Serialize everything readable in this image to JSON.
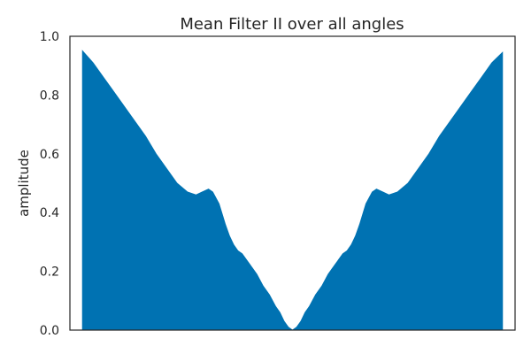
{
  "chart_data": {
    "type": "area",
    "title": "Mean Filter II over all angles",
    "xlabel": "",
    "ylabel": "amplitude",
    "ylim": [
      0,
      1
    ],
    "xlim": [
      -1.06,
      1.06
    ],
    "x_ticks_visible": false,
    "y_ticks": [
      "0.0",
      "0.2",
      "0.4",
      "0.6",
      "0.8",
      "1.0"
    ],
    "grid": false,
    "legend": "none",
    "fill_color": "#0072b2",
    "series": [
      {
        "x": [
          -1.0,
          -0.95,
          -0.9,
          -0.85,
          -0.8,
          -0.75,
          -0.7,
          -0.65,
          -0.6,
          -0.55,
          -0.5,
          -0.46,
          -0.43,
          -0.4,
          -0.38,
          -0.35,
          -0.32,
          -0.3,
          -0.28,
          -0.26,
          -0.24,
          -0.22,
          -0.2,
          -0.17,
          -0.14,
          -0.11,
          -0.08,
          -0.06,
          -0.04,
          -0.02,
          0.0,
          0.02,
          0.04,
          0.06,
          0.08,
          0.11,
          0.14,
          0.17,
          0.2,
          0.22,
          0.24,
          0.26,
          0.28,
          0.3,
          0.32,
          0.35,
          0.38,
          0.4,
          0.43,
          0.46,
          0.5,
          0.55,
          0.6,
          0.65,
          0.7,
          0.75,
          0.8,
          0.85,
          0.9,
          0.95,
          1.0
        ],
        "y": [
          0.95,
          0.91,
          0.86,
          0.81,
          0.76,
          0.71,
          0.66,
          0.6,
          0.55,
          0.5,
          0.47,
          0.46,
          0.47,
          0.48,
          0.47,
          0.43,
          0.36,
          0.32,
          0.29,
          0.27,
          0.26,
          0.24,
          0.22,
          0.19,
          0.15,
          0.12,
          0.08,
          0.06,
          0.03,
          0.01,
          0.0,
          0.01,
          0.03,
          0.06,
          0.08,
          0.12,
          0.15,
          0.19,
          0.22,
          0.24,
          0.26,
          0.27,
          0.29,
          0.32,
          0.36,
          0.43,
          0.47,
          0.48,
          0.47,
          0.46,
          0.47,
          0.5,
          0.55,
          0.6,
          0.66,
          0.71,
          0.76,
          0.81,
          0.86,
          0.91,
          0.945
        ]
      }
    ]
  }
}
